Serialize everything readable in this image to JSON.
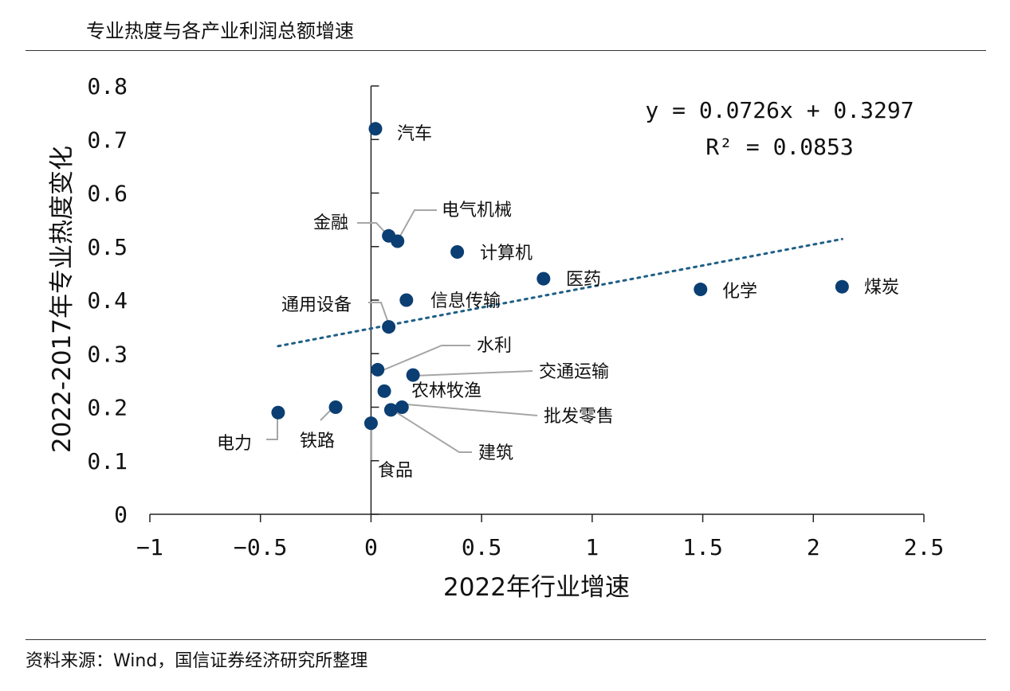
{
  "title": "专业热度与各产业利润总额增速",
  "source": "资料来源：Wind，国信证券经济研究所整理",
  "colors": {
    "point": "#0b3f73",
    "trend": "#1f5f86",
    "axis": "#222222",
    "leader": "#a6a6a6"
  },
  "chart_data": {
    "type": "scatter",
    "title": "专业热度与各产业利润总额增速",
    "xlabel": "2022年行业增速",
    "ylabel": "2022-2017年专业热度变化",
    "xlim": [
      -1,
      2.5
    ],
    "ylim": [
      0,
      0.8
    ],
    "xticks": [
      -1,
      -0.5,
      0,
      0.5,
      1,
      1.5,
      2,
      2.5
    ],
    "xtick_labels": [
      "−1",
      "−0.5",
      "0",
      "0.5",
      "1",
      "1.5",
      "2",
      "2.5"
    ],
    "yticks": [
      0,
      0.1,
      0.2,
      0.3,
      0.4,
      0.5,
      0.6,
      0.7,
      0.8
    ],
    "ytick_labels": [
      "0",
      "0.1",
      "0.2",
      "0.3",
      "0.4",
      "0.5",
      "0.6",
      "0.7",
      "0.8"
    ],
    "grid": false,
    "points": [
      {
        "name": "汽车",
        "x": 0.02,
        "y": 0.72
      },
      {
        "name": "金融",
        "x": 0.08,
        "y": 0.52
      },
      {
        "name": "电气机械",
        "x": 0.12,
        "y": 0.51
      },
      {
        "name": "计算机",
        "x": 0.39,
        "y": 0.49
      },
      {
        "name": "医药",
        "x": 0.78,
        "y": 0.44
      },
      {
        "name": "化学",
        "x": 1.49,
        "y": 0.42
      },
      {
        "name": "煤炭",
        "x": 2.13,
        "y": 0.425
      },
      {
        "name": "信息传输",
        "x": 0.16,
        "y": 0.4
      },
      {
        "name": "通用设备",
        "x": 0.08,
        "y": 0.35
      },
      {
        "name": "水利",
        "x": 0.03,
        "y": 0.27
      },
      {
        "name": "交通运输",
        "x": 0.19,
        "y": 0.26
      },
      {
        "name": "农林牧渔",
        "x": 0.06,
        "y": 0.23
      },
      {
        "name": "批发零售",
        "x": 0.14,
        "y": 0.2
      },
      {
        "name": "建筑",
        "x": 0.09,
        "y": 0.195
      },
      {
        "name": "食品",
        "x": 0.0,
        "y": 0.17
      },
      {
        "name": "铁路",
        "x": -0.16,
        "y": 0.2
      },
      {
        "name": "电力",
        "x": -0.42,
        "y": 0.19
      }
    ],
    "trendline": {
      "type": "linear",
      "slope": 0.0726,
      "intercept": 0.3297,
      "x_range": [
        -0.42,
        2.13
      ],
      "style": "dotted"
    },
    "annotations": {
      "equation": "y = 0.0726x + 0.3297",
      "r_squared": "R² = 0.0853"
    }
  }
}
